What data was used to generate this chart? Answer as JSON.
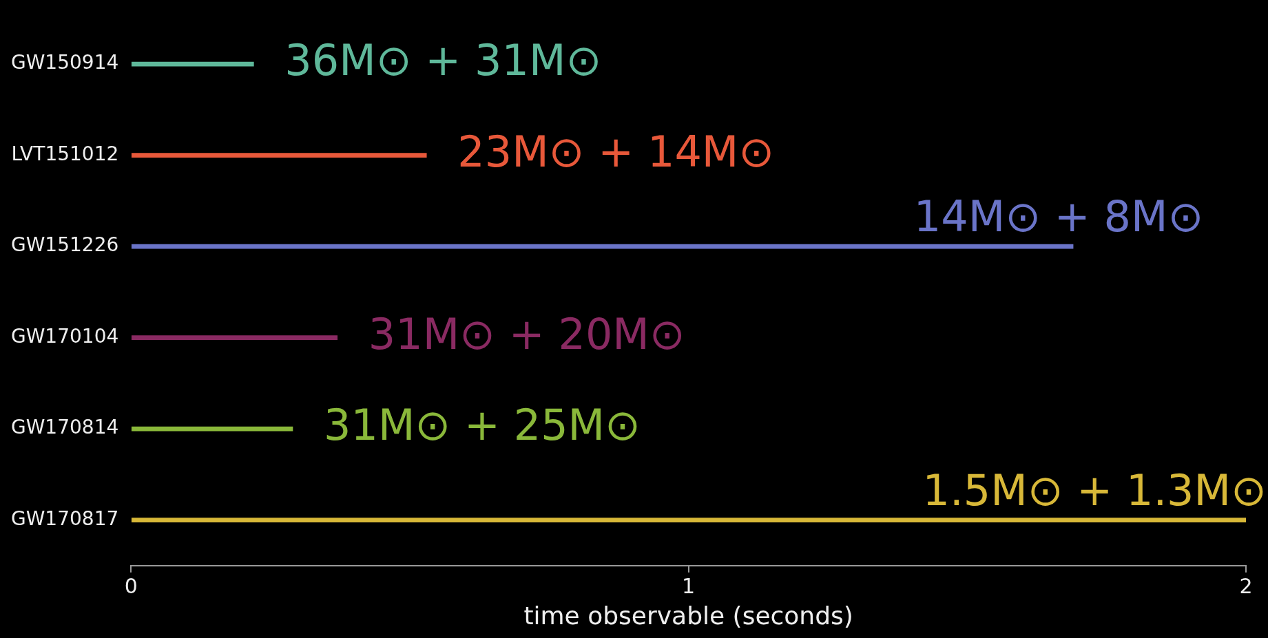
{
  "chart_data": {
    "type": "bar",
    "orientation": "horizontal",
    "xlabel": "time observable (seconds)",
    "categories": [
      "GW150914",
      "LVT151012",
      "GW151226",
      "GW170104",
      "GW170814",
      "GW170817"
    ],
    "values": [
      0.22,
      0.53,
      1.69,
      0.37,
      0.29,
      2
    ],
    "colors": [
      "#5fb89a",
      "#e8583a",
      "#6a74c8",
      "#8a2a62",
      "#8ab83a",
      "#d8b838"
    ],
    "xlim": [
      0,
      2
    ],
    "xticks": [
      0,
      1,
      2
    ],
    "grid": false,
    "legend": false,
    "annotations": [
      {
        "text": "36M⊙ + 31M⊙",
        "x": 0.22,
        "y": "GW150914"
      },
      {
        "text": "23M⊙ + 14M⊙",
        "x": 0.53,
        "y": "LVT151012"
      },
      {
        "text": "14M⊙ + 8M⊙",
        "x": 1.69,
        "y": "GW151226"
      },
      {
        "text": "31M⊙ + 20M⊙",
        "x": 0.37,
        "y": "GW170104"
      },
      {
        "text": "31M⊙ + 25M⊙",
        "x": 0.29,
        "y": "GW170814"
      },
      {
        "text": "1.5M⊙ + 1.3M⊙",
        "x": 2,
        "y": "GW170817"
      }
    ]
  }
}
